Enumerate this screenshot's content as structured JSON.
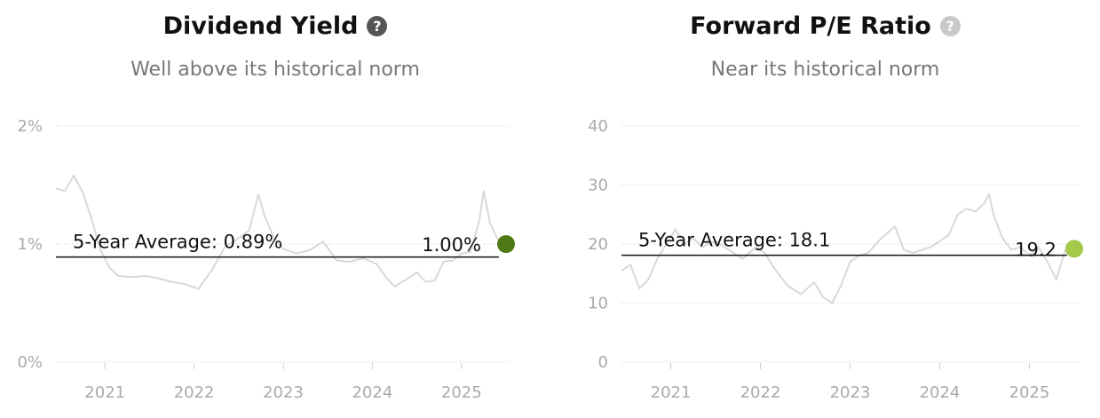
{
  "chart_data": [
    {
      "type": "line",
      "title": "Dividend Yield",
      "subtitle": "Well above its historical norm",
      "help_icon": "question-circle-icon",
      "help_color": "#555555",
      "ylim": [
        0,
        2
      ],
      "yticks": [
        0,
        1,
        2
      ],
      "ytick_labels": [
        "0%",
        "1%",
        "2%"
      ],
      "xlim": [
        2020.45,
        2025.55
      ],
      "xticks": [
        2021,
        2022,
        2023,
        2024,
        2025
      ],
      "xtick_labels": [
        "2021",
        "2022",
        "2023",
        "2024",
        "2025"
      ],
      "grid": true,
      "series": [
        {
          "color": "#d9d9d9",
          "x": [
            2020.45,
            2020.55,
            2020.65,
            2020.75,
            2020.85,
            2020.95,
            2021.05,
            2021.15,
            2021.3,
            2021.45,
            2021.6,
            2021.75,
            2021.9,
            2022.05,
            2022.2,
            2022.35,
            2022.5,
            2022.62,
            2022.72,
            2022.8,
            2022.9,
            2023.0,
            2023.15,
            2023.3,
            2023.45,
            2023.6,
            2023.75,
            2023.9,
            2024.05,
            2024.15,
            2024.25,
            2024.4,
            2024.5,
            2024.6,
            2024.7,
            2024.8,
            2024.9,
            2025.0,
            2025.1,
            2025.2,
            2025.25,
            2025.32,
            2025.4,
            2025.48
          ],
          "y": [
            1.47,
            1.45,
            1.58,
            1.44,
            1.21,
            0.95,
            0.8,
            0.73,
            0.72,
            0.73,
            0.71,
            0.68,
            0.66,
            0.62,
            0.78,
            0.98,
            1.05,
            1.12,
            1.42,
            1.22,
            1.05,
            0.96,
            0.92,
            0.95,
            1.02,
            0.86,
            0.85,
            0.88,
            0.83,
            0.72,
            0.64,
            0.71,
            0.76,
            0.68,
            0.69,
            0.85,
            0.86,
            0.92,
            0.93,
            1.2,
            1.45,
            1.18,
            1.05,
            1.0
          ]
        }
      ],
      "average_label": "5-Year Average: 0.89%",
      "average_value": 0.89,
      "current_label": "1.00%",
      "current_value": 1.0,
      "current_x": 2025.5,
      "marker_color": "#4e7a16"
    },
    {
      "type": "line",
      "title": "Forward P/E Ratio",
      "subtitle": "Near its historical norm",
      "help_icon": "question-circle-icon",
      "help_color": "#c8c8c8",
      "ylim": [
        0,
        40
      ],
      "yticks": [
        0,
        10,
        20,
        30,
        40
      ],
      "ytick_labels": [
        "0",
        "10",
        "20",
        "30",
        "40"
      ],
      "xlim": [
        2020.45,
        2025.55
      ],
      "xticks": [
        2021,
        2022,
        2023,
        2024,
        2025
      ],
      "xtick_labels": [
        "2021",
        "2022",
        "2023",
        "2024",
        "2025"
      ],
      "grid": true,
      "series": [
        {
          "color": "#d9d9d9",
          "x": [
            2020.45,
            2020.55,
            2020.65,
            2020.75,
            2020.85,
            2020.95,
            2021.05,
            2021.15,
            2021.25,
            2021.35,
            2021.5,
            2021.65,
            2021.8,
            2021.95,
            2022.05,
            2022.15,
            2022.3,
            2022.45,
            2022.6,
            2022.7,
            2022.8,
            2022.9,
            2023.0,
            2023.1,
            2023.2,
            2023.35,
            2023.5,
            2023.6,
            2023.7,
            2023.8,
            2023.9,
            2024.0,
            2024.1,
            2024.2,
            2024.3,
            2024.4,
            2024.5,
            2024.55,
            2024.6,
            2024.7,
            2024.8,
            2024.9,
            2025.0,
            2025.1,
            2025.2,
            2025.3,
            2025.4,
            2025.48
          ],
          "y": [
            15.5,
            16.5,
            12.5,
            14.0,
            17.5,
            20.0,
            22.5,
            20.0,
            21.0,
            19.5,
            20.5,
            19.0,
            17.5,
            19.5,
            18.5,
            16.0,
            13.0,
            11.5,
            13.5,
            11.0,
            10.0,
            13.0,
            17.0,
            18.0,
            18.5,
            21.0,
            23.0,
            19.0,
            18.5,
            19.0,
            19.5,
            20.5,
            21.5,
            25.0,
            26.0,
            25.5,
            27.0,
            28.5,
            25.0,
            21.0,
            19.0,
            19.5,
            18.0,
            19.5,
            17.0,
            14.0,
            19.0,
            19.2
          ]
        }
      ],
      "average_label": "5-Year Average: 18.1",
      "average_value": 18.1,
      "current_label": "19.2",
      "current_value": 19.2,
      "current_x": 2025.5,
      "marker_color": "#a3c84a"
    }
  ]
}
